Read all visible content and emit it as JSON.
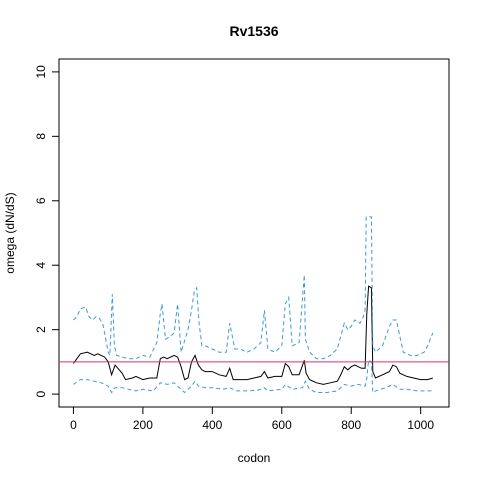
{
  "chart_data": {
    "type": "line",
    "title": "Rv1536",
    "xlabel": "codon",
    "ylabel": "omega (dN/dS)",
    "xlim": [
      0,
      1040
    ],
    "ylim": [
      0,
      10
    ],
    "xticks": [
      0,
      200,
      400,
      600,
      800,
      1000
    ],
    "yticks": [
      0,
      2,
      4,
      6,
      8,
      10
    ],
    "reference_line": {
      "y": 1,
      "color": "#d6336c"
    },
    "colors": {
      "mean": "#000000",
      "bounds": "#3a9ad9"
    },
    "series": [
      {
        "role": "mean",
        "style": "solid",
        "points": [
          [
            0,
            0.95
          ],
          [
            10,
            1.1
          ],
          [
            20,
            1.25
          ],
          [
            40,
            1.3
          ],
          [
            60,
            1.2
          ],
          [
            70,
            1.25
          ],
          [
            80,
            1.2
          ],
          [
            90,
            1.15
          ],
          [
            100,
            1.0
          ],
          [
            110,
            0.6
          ],
          [
            120,
            0.9
          ],
          [
            140,
            0.65
          ],
          [
            150,
            0.45
          ],
          [
            170,
            0.5
          ],
          [
            180,
            0.55
          ],
          [
            200,
            0.45
          ],
          [
            220,
            0.5
          ],
          [
            240,
            0.5
          ],
          [
            250,
            1.1
          ],
          [
            260,
            1.15
          ],
          [
            270,
            1.1
          ],
          [
            290,
            1.2
          ],
          [
            300,
            1.15
          ],
          [
            310,
            0.85
          ],
          [
            320,
            0.45
          ],
          [
            330,
            0.5
          ],
          [
            340,
            1.0
          ],
          [
            350,
            1.2
          ],
          [
            360,
            0.9
          ],
          [
            370,
            0.75
          ],
          [
            380,
            0.7
          ],
          [
            400,
            0.7
          ],
          [
            420,
            0.6
          ],
          [
            440,
            0.55
          ],
          [
            450,
            0.8
          ],
          [
            460,
            0.45
          ],
          [
            480,
            0.45
          ],
          [
            500,
            0.45
          ],
          [
            520,
            0.5
          ],
          [
            540,
            0.55
          ],
          [
            550,
            0.7
          ],
          [
            560,
            0.5
          ],
          [
            580,
            0.55
          ],
          [
            600,
            0.55
          ],
          [
            610,
            0.95
          ],
          [
            620,
            0.85
          ],
          [
            630,
            0.6
          ],
          [
            650,
            0.6
          ],
          [
            665,
            1.05
          ],
          [
            670,
            0.65
          ],
          [
            680,
            0.45
          ],
          [
            700,
            0.35
          ],
          [
            720,
            0.3
          ],
          [
            740,
            0.35
          ],
          [
            760,
            0.4
          ],
          [
            770,
            0.6
          ],
          [
            780,
            0.85
          ],
          [
            790,
            0.75
          ],
          [
            800,
            0.85
          ],
          [
            810,
            0.9
          ],
          [
            820,
            0.85
          ],
          [
            830,
            0.8
          ],
          [
            840,
            0.8
          ],
          [
            845,
            2.5
          ],
          [
            850,
            3.35
          ],
          [
            858,
            3.3
          ],
          [
            862,
            0.7
          ],
          [
            870,
            0.5
          ],
          [
            890,
            0.6
          ],
          [
            910,
            0.7
          ],
          [
            920,
            0.9
          ],
          [
            930,
            0.85
          ],
          [
            940,
            0.65
          ],
          [
            960,
            0.55
          ],
          [
            980,
            0.5
          ],
          [
            1000,
            0.45
          ],
          [
            1020,
            0.45
          ],
          [
            1035,
            0.5
          ]
        ]
      },
      {
        "role": "upper-bound",
        "style": "dashed",
        "points": [
          [
            0,
            2.3
          ],
          [
            10,
            2.4
          ],
          [
            20,
            2.65
          ],
          [
            35,
            2.7
          ],
          [
            45,
            2.4
          ],
          [
            55,
            2.3
          ],
          [
            65,
            2.4
          ],
          [
            75,
            2.35
          ],
          [
            85,
            2.15
          ],
          [
            95,
            1.6
          ],
          [
            100,
            1.3
          ],
          [
            105,
            1.2
          ],
          [
            112,
            3.1
          ],
          [
            118,
            1.5
          ],
          [
            125,
            1.2
          ],
          [
            140,
            1.15
          ],
          [
            160,
            1.1
          ],
          [
            180,
            1.1
          ],
          [
            200,
            1.2
          ],
          [
            220,
            1.15
          ],
          [
            240,
            1.6
          ],
          [
            250,
            2.5
          ],
          [
            255,
            2.8
          ],
          [
            265,
            1.7
          ],
          [
            280,
            1.8
          ],
          [
            290,
            1.9
          ],
          [
            300,
            2.8
          ],
          [
            310,
            1.3
          ],
          [
            330,
            2.0
          ],
          [
            340,
            2.6
          ],
          [
            348,
            3.2
          ],
          [
            355,
            3.3
          ],
          [
            362,
            2.2
          ],
          [
            370,
            1.5
          ],
          [
            380,
            1.5
          ],
          [
            400,
            1.4
          ],
          [
            420,
            1.3
          ],
          [
            440,
            1.3
          ],
          [
            450,
            2.2
          ],
          [
            465,
            1.4
          ],
          [
            480,
            1.4
          ],
          [
            500,
            1.3
          ],
          [
            520,
            1.4
          ],
          [
            540,
            1.6
          ],
          [
            550,
            2.6
          ],
          [
            560,
            1.4
          ],
          [
            580,
            1.3
          ],
          [
            600,
            1.5
          ],
          [
            610,
            2.8
          ],
          [
            620,
            3.0
          ],
          [
            630,
            1.5
          ],
          [
            650,
            1.6
          ],
          [
            665,
            3.7
          ],
          [
            668,
            1.7
          ],
          [
            680,
            1.3
          ],
          [
            700,
            1.1
          ],
          [
            720,
            1.1
          ],
          [
            740,
            1.2
          ],
          [
            760,
            1.4
          ],
          [
            770,
            1.8
          ],
          [
            780,
            2.2
          ],
          [
            790,
            2.0
          ],
          [
            800,
            2.1
          ],
          [
            810,
            2.3
          ],
          [
            825,
            2.2
          ],
          [
            835,
            2.4
          ],
          [
            840,
            2.6
          ],
          [
            843,
            5.5
          ],
          [
            858,
            5.5
          ],
          [
            862,
            1.5
          ],
          [
            870,
            1.3
          ],
          [
            890,
            1.5
          ],
          [
            910,
            2.1
          ],
          [
            920,
            2.3
          ],
          [
            930,
            2.3
          ],
          [
            940,
            1.8
          ],
          [
            950,
            1.3
          ],
          [
            970,
            1.2
          ],
          [
            990,
            1.2
          ],
          [
            1010,
            1.3
          ],
          [
            1020,
            1.5
          ],
          [
            1035,
            1.9
          ]
        ]
      },
      {
        "role": "lower-bound",
        "style": "dashed",
        "points": [
          [
            0,
            0.3
          ],
          [
            20,
            0.45
          ],
          [
            40,
            0.45
          ],
          [
            60,
            0.4
          ],
          [
            80,
            0.35
          ],
          [
            100,
            0.25
          ],
          [
            110,
            0.05
          ],
          [
            120,
            0.2
          ],
          [
            140,
            0.2
          ],
          [
            160,
            0.15
          ],
          [
            180,
            0.1
          ],
          [
            200,
            0.15
          ],
          [
            230,
            0.1
          ],
          [
            250,
            0.35
          ],
          [
            270,
            0.3
          ],
          [
            290,
            0.35
          ],
          [
            300,
            0.25
          ],
          [
            320,
            0.05
          ],
          [
            340,
            0.25
          ],
          [
            350,
            0.4
          ],
          [
            360,
            0.25
          ],
          [
            380,
            0.2
          ],
          [
            400,
            0.2
          ],
          [
            430,
            0.15
          ],
          [
            450,
            0.2
          ],
          [
            470,
            0.1
          ],
          [
            500,
            0.1
          ],
          [
            530,
            0.12
          ],
          [
            550,
            0.2
          ],
          [
            560,
            0.1
          ],
          [
            600,
            0.15
          ],
          [
            610,
            0.3
          ],
          [
            630,
            0.15
          ],
          [
            660,
            0.2
          ],
          [
            668,
            0.4
          ],
          [
            680,
            0.15
          ],
          [
            700,
            0.05
          ],
          [
            730,
            0.05
          ],
          [
            760,
            0.1
          ],
          [
            780,
            0.3
          ],
          [
            800,
            0.25
          ],
          [
            820,
            0.3
          ],
          [
            840,
            0.25
          ],
          [
            845,
            0.5
          ],
          [
            850,
            1.05
          ],
          [
            858,
            1.0
          ],
          [
            862,
            0.05
          ],
          [
            870,
            0.1
          ],
          [
            900,
            0.2
          ],
          [
            920,
            0.3
          ],
          [
            940,
            0.15
          ],
          [
            960,
            0.15
          ],
          [
            990,
            0.1
          ],
          [
            1010,
            0.1
          ],
          [
            1035,
            0.1
          ]
        ]
      }
    ]
  }
}
